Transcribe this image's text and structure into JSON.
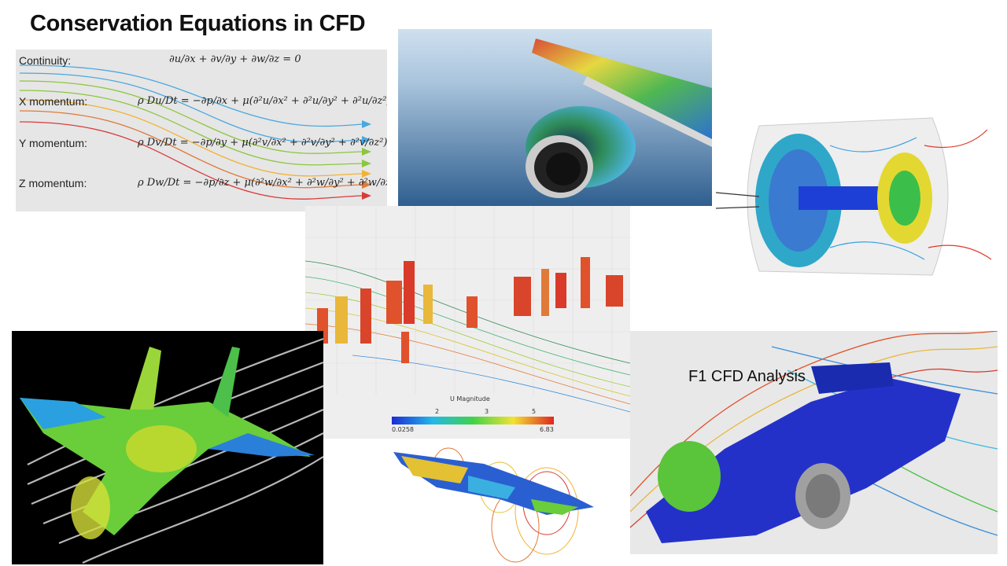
{
  "title": "Conservation Equations in CFD",
  "equations": [
    {
      "label": "Continuity:",
      "formula": "∂u/∂x + ∂v/∂y + ∂w/∂z = 0"
    },
    {
      "label": "X momentum:",
      "formula": "ρ Du/Dt = −∂p/∂x + μ(∂²u/∂x² + ∂²u/∂y² + ∂²u/∂z²) + ρg_x"
    },
    {
      "label": "Y momentum:",
      "formula": "ρ Dv/Dt = −∂p/∂y + μ(∂²v/∂x² + ∂²v/∂y² + ∂²v/∂z²) + ρg_y"
    },
    {
      "label": "Z momentum:",
      "formula": "ρ Dw/Dt = −∂p/∂z + μ(∂²w/∂x² + ∂²w/∂y² + ∂²w/∂z²) + ρg_z"
    }
  ],
  "city_colorbar": {
    "title": "U Magnitude",
    "ticks": [
      "2",
      "3",
      "5"
    ],
    "min": "0.0258",
    "max": "6.83"
  },
  "f1_caption": "F1 CFD Analysis",
  "colors": {
    "panel_bg": "#e6e6e6",
    "streamlines": [
      "#4aa8e0",
      "#8cc63f",
      "#f2b233",
      "#e07a3a",
      "#d93a3a"
    ]
  }
}
